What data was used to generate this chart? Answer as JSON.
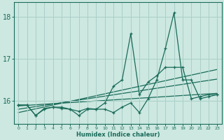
{
  "xlabel": "Humidex (Indice chaleur)",
  "xlim": [
    -0.5,
    23.5
  ],
  "ylim": [
    15.45,
    18.35
  ],
  "yticks": [
    16,
    17,
    18
  ],
  "xticks": [
    0,
    1,
    2,
    3,
    4,
    5,
    6,
    7,
    8,
    9,
    10,
    11,
    12,
    13,
    14,
    15,
    16,
    17,
    18,
    19,
    20,
    21,
    22,
    23
  ],
  "bg_color": "#cce8e0",
  "grid_color": "#aacfc7",
  "line_color": "#1a6b5a",
  "series1_x": [
    0,
    1,
    2,
    3,
    4,
    5,
    6,
    7,
    8,
    9,
    10,
    11,
    12,
    13,
    14,
    15,
    16,
    17,
    18,
    19,
    20,
    21,
    22,
    23
  ],
  "series1_y": [
    15.9,
    15.9,
    15.65,
    15.8,
    15.85,
    15.85,
    15.8,
    15.65,
    15.8,
    15.8,
    15.8,
    15.72,
    15.85,
    15.95,
    15.72,
    16.05,
    16.5,
    17.25,
    18.1,
    16.5,
    16.5,
    16.05,
    16.1,
    16.15
  ],
  "series2_x": [
    0,
    1,
    2,
    3,
    4,
    5,
    6,
    7,
    8,
    9,
    10,
    11,
    12,
    13,
    14,
    15,
    16,
    17,
    18,
    19,
    20,
    21,
    22,
    23
  ],
  "series2_y": [
    15.9,
    15.9,
    15.65,
    15.82,
    15.85,
    15.82,
    15.8,
    15.75,
    15.82,
    15.8,
    15.95,
    16.35,
    16.5,
    17.6,
    16.15,
    16.45,
    16.6,
    16.8,
    16.8,
    16.8,
    16.05,
    16.1,
    16.15,
    16.15
  ],
  "trend1_x": [
    0,
    23
  ],
  "trend1_y": [
    15.88,
    16.18
  ],
  "trend2_x": [
    0,
    23
  ],
  "trend2_y": [
    15.8,
    16.52
  ],
  "trend3_x": [
    0,
    23
  ],
  "trend3_y": [
    15.72,
    16.75
  ]
}
